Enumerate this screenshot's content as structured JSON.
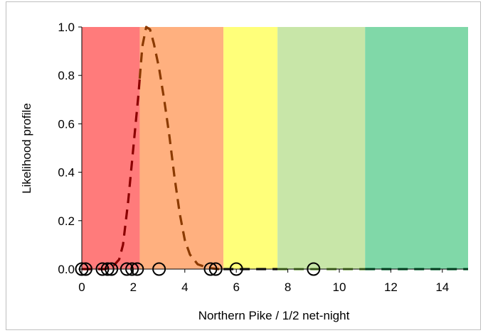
{
  "chart_data": {
    "type": "line",
    "title": "",
    "xlabel": "Northern Pike / 1/2 net-night",
    "ylabel": "Likelihood profile",
    "xlim": [
      0,
      15
    ],
    "ylim": [
      0,
      1.0
    ],
    "xticks": [
      0,
      2,
      4,
      6,
      8,
      10,
      12,
      14
    ],
    "yticks": [
      0.0,
      0.2,
      0.4,
      0.6,
      0.8,
      1.0
    ],
    "xtick_labels": [
      "0",
      "2",
      "4",
      "6",
      "8",
      "10",
      "12",
      "14"
    ],
    "ytick_labels": [
      "0.0",
      "0.2",
      "0.4",
      "0.6",
      "0.8",
      "1.0"
    ],
    "grid": false,
    "bands": [
      {
        "from": 0,
        "to": 2.25,
        "color": "#ff7b7b"
      },
      {
        "from": 2.25,
        "to": 5.5,
        "color": "#ffb07f"
      },
      {
        "from": 5.5,
        "to": 7.6,
        "color": "#ffff7a"
      },
      {
        "from": 7.6,
        "to": 11.0,
        "color": "#c8e6a8"
      },
      {
        "from": 11.0,
        "to": 15,
        "color": "#80d8a8"
      }
    ],
    "curve": {
      "style": "dashed",
      "x": [
        0,
        0.9,
        1.2,
        1.45,
        1.6,
        1.8,
        2.0,
        2.2,
        2.35,
        2.5,
        2.65,
        2.8,
        3.0,
        3.2,
        3.4,
        3.6,
        3.8,
        4.0,
        4.2,
        4.5,
        4.9,
        5.3,
        6,
        7,
        8,
        9,
        10,
        11,
        12,
        13,
        14,
        15
      ],
      "y": [
        0,
        0,
        0.01,
        0.04,
        0.1,
        0.28,
        0.5,
        0.72,
        0.92,
        1.0,
        0.99,
        0.93,
        0.83,
        0.7,
        0.55,
        0.38,
        0.23,
        0.12,
        0.06,
        0.02,
        0.005,
        0,
        0,
        0,
        0,
        0,
        0,
        0,
        0,
        0,
        0,
        0
      ],
      "segment_colors": [
        {
          "from": 0,
          "to": 2.25,
          "color": "#8b0000"
        },
        {
          "from": 2.25,
          "to": 5.5,
          "color": "#8b3a00"
        },
        {
          "from": 5.5,
          "to": 7.6,
          "color": "#1a1a1a"
        },
        {
          "from": 7.6,
          "to": 11.0,
          "color": "#6a9a3a"
        },
        {
          "from": 11.0,
          "to": 15,
          "color": "#0e6b3a"
        }
      ]
    },
    "observations": {
      "marker": "open-circle",
      "x": [
        0,
        0.15,
        0.8,
        1.0,
        1.15,
        1.75,
        1.95,
        2.15,
        3.0,
        5.0,
        5.2,
        6.0,
        9.0
      ],
      "y": [
        0,
        0,
        0,
        0,
        0,
        0,
        0,
        0,
        0,
        0,
        0,
        0,
        0
      ]
    }
  }
}
